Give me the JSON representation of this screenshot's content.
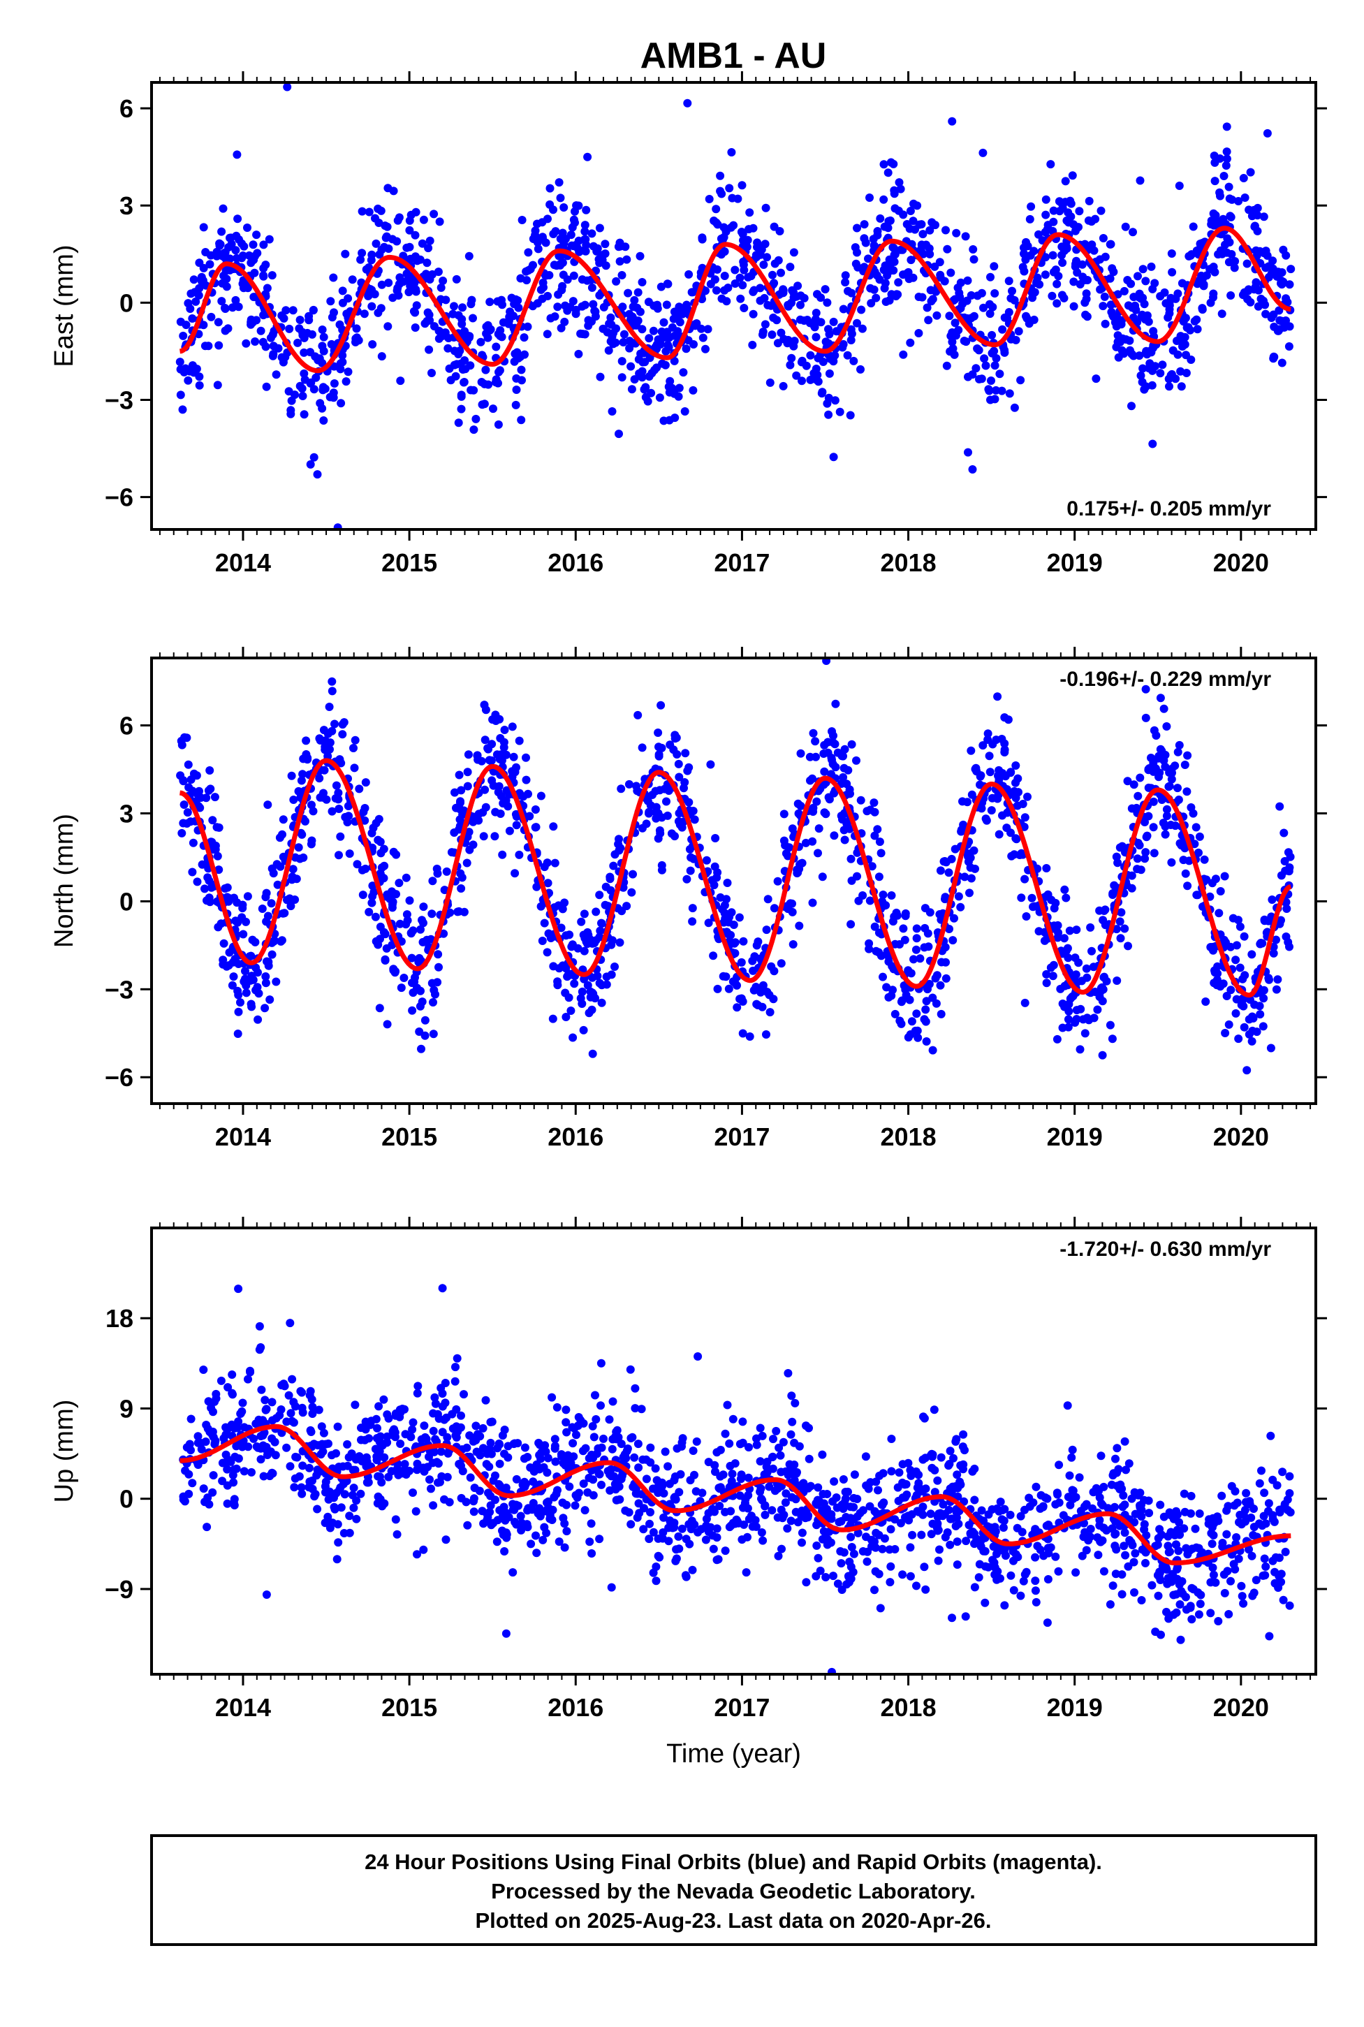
{
  "title": "AMB1 - AU",
  "colors": {
    "points": "#0000ff",
    "model": "#ff0000",
    "frame": "#000000"
  },
  "footer": {
    "line1": "24 Hour Positions Using Final Orbits (blue) and Rapid Orbits (magenta).",
    "line2": "Processed by the Nevada Geodetic Laboratory.",
    "line3": "Plotted on 2025-Aug-23. Last data on 2020-Apr-26."
  },
  "chart_data": [
    {
      "type": "scatter",
      "ylabel": "East (mm)",
      "xlabel": "",
      "xlim": [
        2013.45,
        2020.45
      ],
      "ylim": [
        -7,
        6.8
      ],
      "x_ticks": [
        2014,
        2015,
        2016,
        2017,
        2018,
        2019,
        2020
      ],
      "y_ticks": [
        -6,
        -3,
        0,
        3,
        6
      ],
      "y_tick_labels": [
        "−6",
        "−3",
        "0",
        "3",
        "6"
      ],
      "rate": "0.175+/- 0.205 mm/yr",
      "rate_position": "bottom-right",
      "model": {
        "x": [
          2013.62,
          2013.9,
          2014.45,
          2014.88,
          2015.5,
          2015.9,
          2016.55,
          2016.9,
          2017.5,
          2017.9,
          2018.52,
          2018.9,
          2019.5,
          2019.9,
          2020.3
        ],
        "y": [
          -1.5,
          1.2,
          -2.1,
          1.4,
          -1.9,
          1.6,
          -1.7,
          1.8,
          -1.5,
          1.9,
          -1.3,
          2.1,
          -1.2,
          2.3,
          -0.2
        ]
      },
      "scatter": {
        "noise": 1.1,
        "count": 1700,
        "outliers": 40
      }
    },
    {
      "type": "scatter",
      "ylabel": "North (mm)",
      "xlabel": "",
      "xlim": [
        2013.45,
        2020.45
      ],
      "ylim": [
        -6.9,
        8.3
      ],
      "x_ticks": [
        2014,
        2015,
        2016,
        2017,
        2018,
        2019,
        2020
      ],
      "y_ticks": [
        -6,
        -3,
        0,
        3,
        6
      ],
      "y_tick_labels": [
        "−6",
        "−3",
        "0",
        "3",
        "6"
      ],
      "rate": "-0.196+/- 0.229 mm/yr",
      "rate_position": "top-right",
      "model": {
        "x": [
          2013.62,
          2014.05,
          2014.5,
          2015.05,
          2015.5,
          2016.05,
          2016.5,
          2017.05,
          2017.5,
          2018.05,
          2018.5,
          2019.05,
          2019.5,
          2020.05,
          2020.3
        ],
        "y": [
          3.7,
          -2.1,
          4.8,
          -2.3,
          4.6,
          -2.5,
          4.4,
          -2.7,
          4.2,
          -2.9,
          4.0,
          -3.1,
          3.8,
          -3.2,
          0.5
        ]
      },
      "scatter": {
        "noise": 1.2,
        "count": 1700,
        "outliers": 40
      }
    },
    {
      "type": "scatter",
      "ylabel": "Up (mm)",
      "xlabel": "Time (year)",
      "xlim": [
        2013.45,
        2020.45
      ],
      "ylim": [
        -17.5,
        27
      ],
      "x_ticks": [
        2014,
        2015,
        2016,
        2017,
        2018,
        2019,
        2020
      ],
      "y_ticks": [
        -9,
        0,
        9,
        18
      ],
      "y_tick_labels": [
        "−9",
        "0",
        "9",
        "18"
      ],
      "rate": "-1.720+/- 0.630 mm/yr",
      "rate_position": "top-right",
      "model": {
        "x": [
          2013.62,
          2014.2,
          2014.6,
          2015.2,
          2015.6,
          2016.2,
          2016.6,
          2017.2,
          2017.6,
          2018.2,
          2018.6,
          2019.2,
          2019.6,
          2020.3
        ],
        "y": [
          3.8,
          7.2,
          2.2,
          5.3,
          0.3,
          3.6,
          -1.2,
          1.9,
          -3.1,
          0.2,
          -4.5,
          -1.5,
          -6.4,
          -3.7
        ]
      },
      "scatter": {
        "noise": 3.2,
        "count": 1700,
        "outliers": 40
      }
    }
  ]
}
